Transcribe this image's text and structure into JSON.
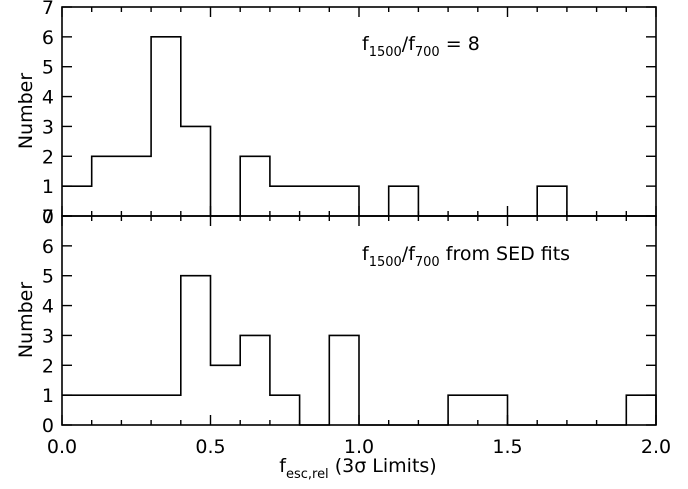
{
  "chart_data": [
    {
      "type": "histogram",
      "panel": "top",
      "annotation": {
        "prefix": "f",
        "sub1": "1500",
        "sep": "/f",
        "sub2": "700",
        "suffix": " = 8"
      },
      "ylabel": "Number",
      "ylim": [
        0,
        7
      ],
      "yticks": [
        "0",
        "1",
        "2",
        "3",
        "4",
        "5",
        "6",
        "7"
      ],
      "xlim": [
        0.0,
        2.0
      ],
      "bin_width": 0.1,
      "bins": [
        {
          "x0": 0.0,
          "x1": 0.1,
          "count": 1
        },
        {
          "x0": 0.1,
          "x1": 0.2,
          "count": 2
        },
        {
          "x0": 0.2,
          "x1": 0.3,
          "count": 2
        },
        {
          "x0": 0.3,
          "x1": 0.4,
          "count": 6
        },
        {
          "x0": 0.4,
          "x1": 0.5,
          "count": 3
        },
        {
          "x0": 0.5,
          "x1": 0.6,
          "count": 0
        },
        {
          "x0": 0.6,
          "x1": 0.7,
          "count": 2
        },
        {
          "x0": 0.7,
          "x1": 0.8,
          "count": 1
        },
        {
          "x0": 0.8,
          "x1": 0.9,
          "count": 1
        },
        {
          "x0": 0.9,
          "x1": 1.0,
          "count": 1
        },
        {
          "x0": 1.0,
          "x1": 1.1,
          "count": 0
        },
        {
          "x0": 1.1,
          "x1": 1.2,
          "count": 1
        },
        {
          "x0": 1.2,
          "x1": 1.3,
          "count": 0
        },
        {
          "x0": 1.3,
          "x1": 1.4,
          "count": 0
        },
        {
          "x0": 1.4,
          "x1": 1.5,
          "count": 0
        },
        {
          "x0": 1.5,
          "x1": 1.6,
          "count": 0
        },
        {
          "x0": 1.6,
          "x1": 1.7,
          "count": 1
        },
        {
          "x0": 1.7,
          "x1": 1.8,
          "count": 0
        },
        {
          "x0": 1.8,
          "x1": 1.9,
          "count": 0
        },
        {
          "x0": 1.9,
          "x1": 2.0,
          "count": 0
        }
      ]
    },
    {
      "type": "histogram",
      "panel": "bottom",
      "annotation": {
        "prefix": "f",
        "sub1": "1500",
        "sep": "/f",
        "sub2": "700",
        "suffix": " from SED fits"
      },
      "ylabel": "Number",
      "ylim": [
        0,
        7
      ],
      "yticks": [
        "0",
        "1",
        "2",
        "3",
        "4",
        "5",
        "6",
        "7"
      ],
      "xlim": [
        0.0,
        2.0
      ],
      "xticks": [
        "0.0",
        "0.5",
        "1.0",
        "1.5",
        "2.0"
      ],
      "xlabel": {
        "prefix": "f",
        "sub": "esc,rel",
        "suffix": " (3σ Limits)"
      },
      "bin_width": 0.1,
      "bins": [
        {
          "x0": 0.0,
          "x1": 0.1,
          "count": 1
        },
        {
          "x0": 0.1,
          "x1": 0.2,
          "count": 1
        },
        {
          "x0": 0.2,
          "x1": 0.3,
          "count": 1
        },
        {
          "x0": 0.3,
          "x1": 0.4,
          "count": 1
        },
        {
          "x0": 0.4,
          "x1": 0.5,
          "count": 5
        },
        {
          "x0": 0.5,
          "x1": 0.6,
          "count": 2
        },
        {
          "x0": 0.6,
          "x1": 0.7,
          "count": 3
        },
        {
          "x0": 0.7,
          "x1": 0.8,
          "count": 1
        },
        {
          "x0": 0.8,
          "x1": 0.9,
          "count": 0
        },
        {
          "x0": 0.9,
          "x1": 1.0,
          "count": 3
        },
        {
          "x0": 1.0,
          "x1": 1.1,
          "count": 0
        },
        {
          "x0": 1.1,
          "x1": 1.2,
          "count": 0
        },
        {
          "x0": 1.2,
          "x1": 1.3,
          "count": 0
        },
        {
          "x0": 1.3,
          "x1": 1.4,
          "count": 1
        },
        {
          "x0": 1.4,
          "x1": 1.5,
          "count": 1
        },
        {
          "x0": 1.5,
          "x1": 1.6,
          "count": 0
        },
        {
          "x0": 1.6,
          "x1": 1.7,
          "count": 0
        },
        {
          "x0": 1.7,
          "x1": 1.8,
          "count": 0
        },
        {
          "x0": 1.8,
          "x1": 1.9,
          "count": 0
        },
        {
          "x0": 1.9,
          "x1": 2.0,
          "count": 1
        }
      ]
    }
  ]
}
